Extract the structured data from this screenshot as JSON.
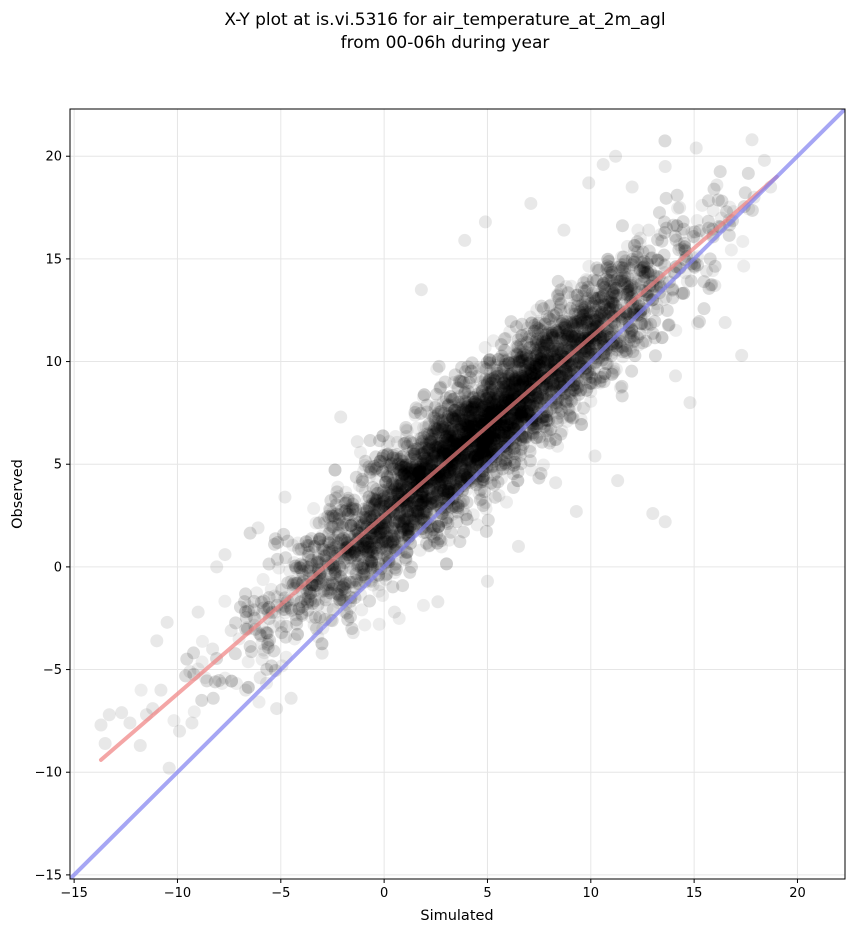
{
  "chart_data": {
    "type": "scatter",
    "title": [
      "X-Y plot at is.vi.5316 for air_temperature_at_2m_agl",
      "from 00-06h during year"
    ],
    "xlabel": "Simulated",
    "ylabel": "Observed",
    "xlim": [
      -15.2,
      22.3
    ],
    "ylim": [
      -15.2,
      22.3
    ],
    "xticks": [
      -15,
      -10,
      -5,
      0,
      5,
      10,
      15,
      20
    ],
    "yticks": [
      -15,
      -10,
      -5,
      0,
      5,
      10,
      15,
      20
    ],
    "xtick_labels": [
      "−15",
      "−10",
      "−5",
      "0",
      "5",
      "10",
      "15",
      "20"
    ],
    "ytick_labels": [
      "−15",
      "−10",
      "−5",
      "0",
      "5",
      "10",
      "15",
      "20"
    ],
    "grid": true,
    "point_color": "#000000",
    "point_alpha": 0.07,
    "cloud": {
      "n": 7000,
      "x_mean": 4.6,
      "x_sd": 4.7,
      "regression_slope": 0.87,
      "regression_intercept": 2.5,
      "residual_sd": 1.5
    },
    "outliers": [
      [
        -13.7,
        -7.7
      ],
      [
        -13.5,
        -8.6
      ],
      [
        -13.3,
        -7.2
      ],
      [
        -12.7,
        -7.1
      ],
      [
        -12.3,
        -7.6
      ],
      [
        -11.8,
        -8.7
      ],
      [
        -11.5,
        -7.2
      ],
      [
        -11.2,
        -6.9
      ],
      [
        -10.8,
        -6.0
      ],
      [
        -10.4,
        -9.8
      ],
      [
        -10.5,
        -2.7
      ],
      [
        -11.0,
        -3.6
      ],
      [
        -9.9,
        -8.0
      ],
      [
        -9.3,
        -7.6
      ],
      [
        -9.0,
        -2.2
      ],
      [
        -8.1,
        0.0
      ],
      [
        -7.7,
        0.6
      ],
      [
        -6.1,
        1.9
      ],
      [
        -4.8,
        3.4
      ],
      [
        -2.1,
        7.3
      ],
      [
        -1.3,
        6.1
      ],
      [
        1.8,
        13.5
      ],
      [
        3.9,
        15.9
      ],
      [
        4.9,
        16.8
      ],
      [
        7.1,
        17.7
      ],
      [
        8.7,
        16.4
      ],
      [
        10.6,
        19.6
      ],
      [
        11.2,
        20.0
      ],
      [
        13.6,
        19.5
      ],
      [
        15.1,
        20.4
      ],
      [
        16.1,
        18.6
      ],
      [
        17.8,
        20.8
      ],
      [
        18.4,
        19.8
      ],
      [
        18.7,
        18.5
      ],
      [
        17.9,
        18.0
      ],
      [
        17.3,
        10.3
      ],
      [
        16.5,
        11.9
      ],
      [
        14.8,
        8.0
      ],
      [
        14.1,
        9.3
      ],
      [
        13.6,
        2.2
      ],
      [
        13.0,
        2.6
      ],
      [
        11.3,
        4.2
      ],
      [
        10.2,
        5.4
      ],
      [
        9.3,
        2.7
      ],
      [
        8.3,
        4.1
      ],
      [
        6.5,
        1.0
      ],
      [
        5.0,
        -0.7
      ],
      [
        2.6,
        -1.7
      ],
      [
        0.5,
        -2.2
      ],
      [
        -1.5,
        -3.2
      ],
      [
        -3.0,
        -4.2
      ],
      [
        -4.5,
        -6.4
      ],
      [
        -5.2,
        -6.9
      ],
      [
        -6.7,
        -6.0
      ],
      [
        -8.3,
        -4.0
      ],
      [
        -9.4,
        -5.1
      ],
      [
        -7.4,
        -3.1
      ],
      [
        -6.0,
        -5.4
      ],
      [
        12.8,
        16.4
      ],
      [
        14.3,
        17.5
      ],
      [
        12.0,
        18.5
      ],
      [
        9.9,
        18.7
      ],
      [
        16.7,
        16.9
      ],
      [
        15.6,
        14.4
      ],
      [
        16.0,
        13.7
      ]
    ],
    "lines": [
      {
        "kind": "regression",
        "color": "#f08080",
        "x": [
          -13.7,
          19.0
        ],
        "y": [
          -9.4,
          19.0
        ]
      },
      {
        "kind": "identity",
        "color": "#8080f0",
        "x": [
          -15.2,
          22.3
        ],
        "y": [
          -15.2,
          22.3
        ]
      }
    ]
  }
}
